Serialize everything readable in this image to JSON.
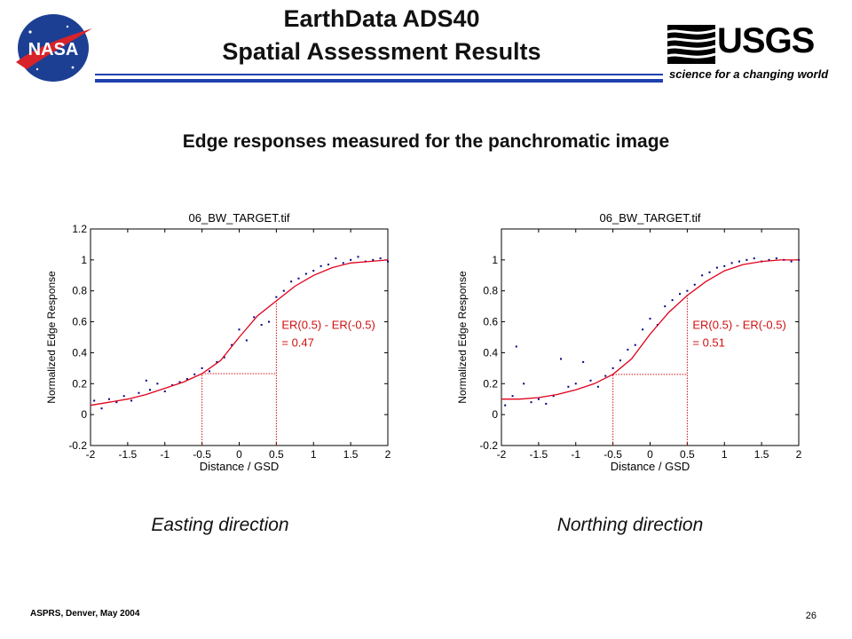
{
  "header": {
    "title_line1": "EarthData ADS40",
    "title_line2": "Spatial Assessment Results",
    "usgs_wordmark": "USGS",
    "usgs_tagline": "science for a changing world",
    "nasa_wordmark": "NASA"
  },
  "subtitle": "Edge responses measured for the panchromatic image",
  "captions": [
    "Easting direction",
    "Northing direction"
  ],
  "footer": {
    "left": "ASPRS, Denver, May 2004",
    "page_number": "26"
  },
  "colors": {
    "fit_line": "#e0001b",
    "samples": "#000080",
    "rule": "#2040b0",
    "annotation": "#d01010"
  },
  "chart_data": [
    {
      "type": "scatter",
      "title": "06_BW_TARGET.tif",
      "xlabel": "Distance / GSD",
      "ylabel": "Normalized Edge Response",
      "xlim": [
        -2,
        2
      ],
      "ylim": [
        -0.2,
        1.2
      ],
      "xticks": [
        -2,
        -1.5,
        -1,
        -0.5,
        0,
        0.5,
        1,
        1.5,
        2
      ],
      "yticks": [
        -0.2,
        0,
        0.2,
        0.4,
        0.6,
        0.8,
        1,
        1.2
      ],
      "grid": false,
      "annotation": {
        "line1": "ER(0.5) - ER(-0.5)",
        "line2": "= 0.47"
      },
      "markers": {
        "x_low": -0.5,
        "x_high": 0.5,
        "er_low": 0.265,
        "er_high": 0.735
      },
      "series": [
        {
          "style": "line",
          "x": [
            -2,
            -1.75,
            -1.5,
            -1.25,
            -1,
            -0.75,
            -0.5,
            -0.25,
            0,
            0.25,
            0.5,
            0.75,
            1,
            1.25,
            1.5,
            1.75,
            2
          ],
          "y": [
            0.06,
            0.08,
            0.1,
            0.13,
            0.17,
            0.21,
            0.265,
            0.35,
            0.5,
            0.64,
            0.735,
            0.83,
            0.9,
            0.95,
            0.98,
            0.99,
            1.0
          ]
        },
        {
          "style": "scatter",
          "x": [
            -1.95,
            -1.85,
            -1.75,
            -1.65,
            -1.55,
            -1.45,
            -1.35,
            -1.25,
            -1.2,
            -1.1,
            -1.0,
            -0.9,
            -0.8,
            -0.7,
            -0.6,
            -0.5,
            -0.4,
            -0.3,
            -0.2,
            -0.1,
            0.0,
            0.1,
            0.2,
            0.3,
            0.4,
            0.5,
            0.6,
            0.7,
            0.8,
            0.9,
            1.0,
            1.1,
            1.2,
            1.3,
            1.4,
            1.5,
            1.6,
            1.7,
            1.8,
            1.9,
            2.0
          ],
          "y": [
            0.09,
            0.04,
            0.1,
            0.08,
            0.12,
            0.09,
            0.14,
            0.22,
            0.16,
            0.2,
            0.15,
            0.19,
            0.21,
            0.23,
            0.26,
            0.3,
            0.28,
            0.34,
            0.37,
            0.45,
            0.55,
            0.48,
            0.63,
            0.58,
            0.6,
            0.76,
            0.8,
            0.86,
            0.88,
            0.91,
            0.93,
            0.96,
            0.97,
            1.01,
            0.98,
            1.0,
            1.02,
            0.99,
            1.0,
            1.01,
            0.99
          ]
        }
      ]
    },
    {
      "type": "scatter",
      "title": "06_BW_TARGET.tif",
      "xlabel": "Distance / GSD",
      "ylabel": "Normalized Edge Response",
      "xlim": [
        -2,
        2
      ],
      "ylim": [
        -0.2,
        1.2
      ],
      "xticks": [
        -2,
        -1.5,
        -1,
        -0.5,
        0,
        0.5,
        1,
        1.5,
        2
      ],
      "yticks": [
        -0.2,
        0,
        0.2,
        0.4,
        0.6,
        0.8,
        1
      ],
      "grid": false,
      "annotation": {
        "line1": "ER(0.5) - ER(-0.5)",
        "line2": "= 0.51"
      },
      "markers": {
        "x_low": -0.5,
        "x_high": 0.5,
        "er_low": 0.26,
        "er_high": 0.77
      },
      "series": [
        {
          "style": "line",
          "x": [
            -2,
            -1.75,
            -1.5,
            -1.25,
            -1,
            -0.75,
            -0.5,
            -0.25,
            0,
            0.25,
            0.5,
            0.75,
            1,
            1.25,
            1.5,
            1.75,
            2
          ],
          "y": [
            0.1,
            0.1,
            0.11,
            0.13,
            0.16,
            0.2,
            0.26,
            0.36,
            0.52,
            0.66,
            0.77,
            0.86,
            0.93,
            0.97,
            0.99,
            1.0,
            1.0
          ]
        },
        {
          "style": "scatter",
          "x": [
            -1.95,
            -1.85,
            -1.8,
            -1.7,
            -1.6,
            -1.5,
            -1.4,
            -1.3,
            -1.2,
            -1.1,
            -1.0,
            -0.9,
            -0.8,
            -0.7,
            -0.6,
            -0.5,
            -0.4,
            -0.3,
            -0.2,
            -0.1,
            0.0,
            0.1,
            0.2,
            0.3,
            0.4,
            0.5,
            0.6,
            0.7,
            0.8,
            0.9,
            1.0,
            1.1,
            1.2,
            1.3,
            1.4,
            1.5,
            1.6,
            1.7,
            1.8,
            1.9,
            2.0
          ],
          "y": [
            0.06,
            0.12,
            0.44,
            0.2,
            0.08,
            0.1,
            0.07,
            0.12,
            0.36,
            0.18,
            0.2,
            0.34,
            0.22,
            0.18,
            0.25,
            0.3,
            0.35,
            0.42,
            0.45,
            0.55,
            0.62,
            0.58,
            0.7,
            0.74,
            0.78,
            0.8,
            0.84,
            0.9,
            0.92,
            0.95,
            0.96,
            0.98,
            0.99,
            1.0,
            1.01,
            0.99,
            1.0,
            1.01,
            1.0,
            0.99,
            1.0
          ]
        }
      ]
    }
  ]
}
